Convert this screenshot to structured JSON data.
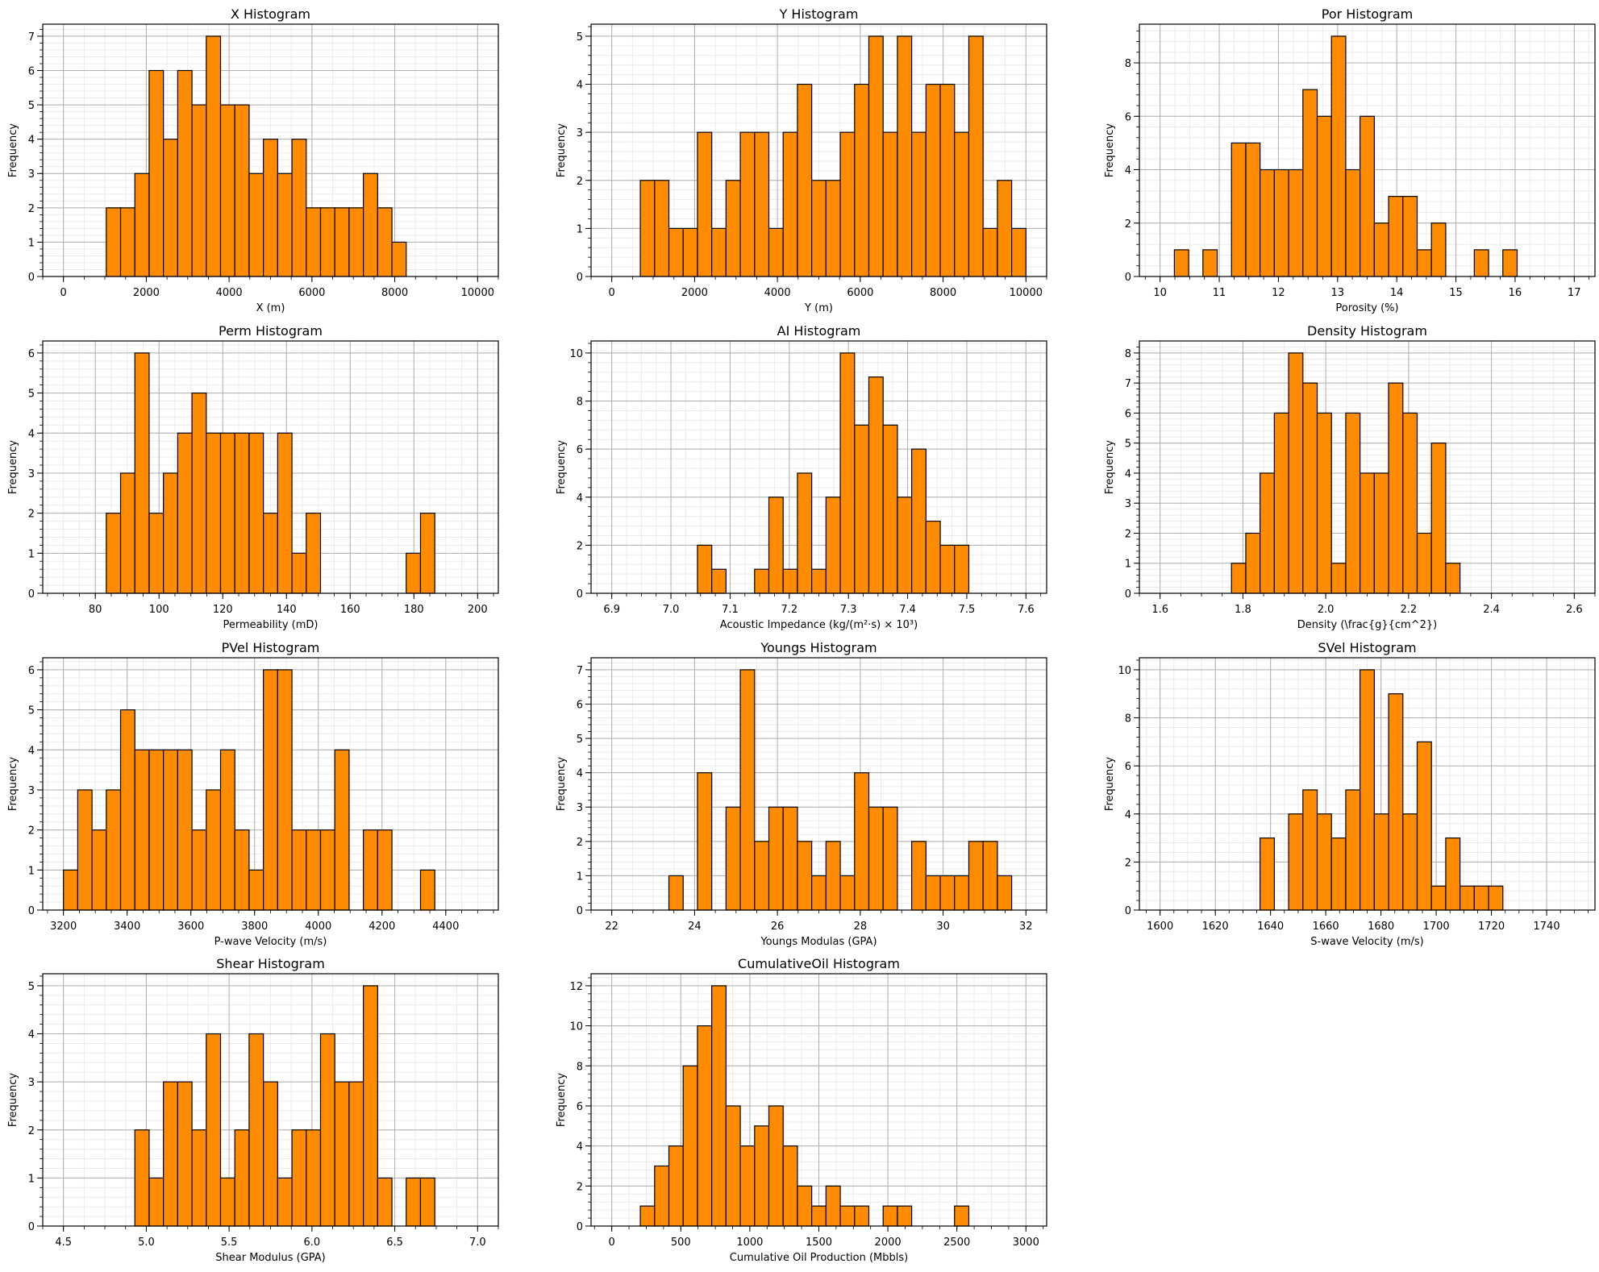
{
  "figure": {
    "bar_color": "#ff8c00",
    "edge_color": "#000000",
    "major_grid_color": "#b0b0b0",
    "minor_grid_color": "#ebebeb"
  },
  "chart_data": [
    {
      "type": "bar",
      "title": "X Histogram",
      "xlabel": "X (m)",
      "ylabel": "Frequency",
      "xlim": [
        -500,
        10500
      ],
      "ylim": [
        0,
        7.35
      ],
      "xticks": [
        0,
        2000,
        4000,
        6000,
        8000,
        10000
      ],
      "xtick_labels": [
        "0",
        "2000",
        "4000",
        "6000",
        "8000",
        "10000"
      ],
      "yticks": [
        0,
        1,
        2,
        3,
        4,
        5,
        6,
        7
      ],
      "ytick_labels": [
        "0",
        "1",
        "2",
        "3",
        "4",
        "5",
        "6",
        "7"
      ],
      "bin_range": [
        0,
        10000
      ],
      "bin_width": 344.83,
      "counts": [
        0,
        0,
        0,
        2,
        2,
        3,
        6,
        4,
        6,
        5,
        7,
        5,
        5,
        3,
        4,
        3,
        4,
        2,
        2,
        2,
        2,
        3,
        2,
        1,
        0,
        0,
        0,
        0,
        0
      ],
      "grid": true
    },
    {
      "type": "bar",
      "title": "Y Histogram",
      "xlabel": "Y (m)",
      "ylabel": "Frequency",
      "xlim": [
        -500,
        10500
      ],
      "ylim": [
        0,
        5.25
      ],
      "xticks": [
        0,
        2000,
        4000,
        6000,
        8000,
        10000
      ],
      "xtick_labels": [
        "0",
        "2000",
        "4000",
        "6000",
        "8000",
        "10000"
      ],
      "yticks": [
        0,
        1,
        2,
        3,
        4,
        5
      ],
      "ytick_labels": [
        "0",
        "1",
        "2",
        "3",
        "4",
        "5"
      ],
      "bin_range": [
        0,
        10000
      ],
      "bin_width": 344.83,
      "counts": [
        0,
        0,
        2,
        2,
        1,
        1,
        3,
        1,
        2,
        3,
        3,
        1,
        3,
        4,
        2,
        2,
        3,
        4,
        5,
        3,
        5,
        3,
        4,
        4,
        3,
        5,
        1,
        2,
        1
      ],
      "grid": true
    },
    {
      "type": "bar",
      "title": "Por Histogram",
      "xlabel": "Porosity (%)",
      "ylabel": "Frequency",
      "xlim": [
        9.65,
        17.35
      ],
      "ylim": [
        0,
        9.45
      ],
      "xticks": [
        10,
        11,
        12,
        13,
        14,
        15,
        16,
        17
      ],
      "xtick_labels": [
        "10",
        "11",
        "12",
        "13",
        "14",
        "15",
        "16",
        "17"
      ],
      "yticks": [
        0,
        2,
        4,
        6,
        8
      ],
      "ytick_labels": [
        "0",
        "2",
        "4",
        "6",
        "8"
      ],
      "bin_range": [
        10,
        17
      ],
      "bin_width": 0.2414,
      "counts": [
        0,
        1,
        0,
        1,
        0,
        5,
        5,
        4,
        4,
        4,
        7,
        6,
        9,
        4,
        6,
        2,
        3,
        3,
        1,
        2,
        0,
        0,
        1,
        0,
        1,
        0,
        0,
        0,
        0
      ],
      "grid": true
    },
    {
      "type": "bar",
      "title": "Perm Histogram",
      "xlabel": "Permeability (mD)",
      "ylabel": "Frequency",
      "xlim": [
        63.5,
        206.5
      ],
      "ylim": [
        0,
        6.3
      ],
      "xticks": [
        80,
        100,
        120,
        140,
        160,
        180,
        200
      ],
      "xtick_labels": [
        "80",
        "100",
        "120",
        "140",
        "160",
        "180",
        "200"
      ],
      "yticks": [
        0,
        1,
        2,
        3,
        4,
        5,
        6
      ],
      "ytick_labels": [
        "0",
        "1",
        "2",
        "3",
        "4",
        "5",
        "6"
      ],
      "bin_range": [
        70,
        200
      ],
      "bin_width": 4.483,
      "counts": [
        0,
        0,
        0,
        2,
        3,
        6,
        2,
        3,
        4,
        5,
        4,
        4,
        4,
        4,
        2,
        4,
        1,
        2,
        0,
        0,
        0,
        0,
        0,
        0,
        1,
        2,
        0,
        0,
        0
      ],
      "grid": true
    },
    {
      "type": "bar",
      "title": "AI Histogram",
      "xlabel": "Acoustic Impedance (kg/(m²·s) × 10³)",
      "ylabel": "Frequency",
      "xlim": [
        6.865,
        7.635
      ],
      "ylim": [
        0,
        10.5
      ],
      "xticks": [
        6.9,
        7.0,
        7.1,
        7.2,
        7.3,
        7.4,
        7.5,
        7.6
      ],
      "xtick_labels": [
        "6.9",
        "7.0",
        "7.1",
        "7.2",
        "7.3",
        "7.4",
        "7.5",
        "7.6"
      ],
      "yticks": [
        0,
        2,
        4,
        6,
        8,
        10
      ],
      "ytick_labels": [
        "0",
        "2",
        "4",
        "6",
        "8",
        "10"
      ],
      "bin_range": [
        6.9,
        7.6
      ],
      "bin_width": 0.02414,
      "counts": [
        0,
        0,
        0,
        0,
        0,
        0,
        2,
        1,
        0,
        0,
        1,
        4,
        1,
        5,
        1,
        4,
        10,
        7,
        9,
        7,
        4,
        6,
        3,
        2,
        2,
        0,
        0,
        0,
        0
      ],
      "grid": true
    },
    {
      "type": "bar",
      "title": "Density Histogram",
      "xlabel": "Density (\\frac{g}{cm^2})",
      "ylabel": "Frequency",
      "xlim": [
        1.55,
        2.65
      ],
      "ylim": [
        0,
        8.4
      ],
      "xticks": [
        1.6,
        1.8,
        2.0,
        2.2,
        2.4,
        2.6
      ],
      "xtick_labels": [
        "1.6",
        "1.8",
        "2.0",
        "2.2",
        "2.4",
        "2.6"
      ],
      "yticks": [
        0,
        1,
        2,
        3,
        4,
        5,
        6,
        7,
        8
      ],
      "ytick_labels": [
        "0",
        "1",
        "2",
        "3",
        "4",
        "5",
        "6",
        "7",
        "8"
      ],
      "bin_range": [
        1.6,
        2.6
      ],
      "bin_width": 0.03448,
      "counts": [
        0,
        0,
        0,
        0,
        0,
        1,
        2,
        4,
        6,
        8,
        7,
        6,
        1,
        6,
        4,
        4,
        7,
        6,
        2,
        5,
        1,
        0,
        0,
        0,
        0,
        0,
        0,
        0,
        0
      ],
      "grid": true
    },
    {
      "type": "bar",
      "title": "PVel Histogram",
      "xlabel": "P-wave Velocity (m/s)",
      "ylabel": "Frequency",
      "xlim": [
        3135,
        4565
      ],
      "ylim": [
        0,
        6.3
      ],
      "xticks": [
        3200,
        3400,
        3600,
        3800,
        4000,
        4200,
        4400
      ],
      "xtick_labels": [
        "3200",
        "3400",
        "3600",
        "3800",
        "4000",
        "4200",
        "4400"
      ],
      "yticks": [
        0,
        1,
        2,
        3,
        4,
        5,
        6
      ],
      "ytick_labels": [
        "0",
        "1",
        "2",
        "3",
        "4",
        "5",
        "6"
      ],
      "bin_range": [
        3200,
        4500
      ],
      "bin_width": 44.83,
      "counts": [
        1,
        3,
        2,
        3,
        5,
        4,
        4,
        4,
        4,
        2,
        3,
        4,
        2,
        1,
        6,
        6,
        2,
        2,
        2,
        4,
        0,
        2,
        2,
        0,
        0,
        1,
        0,
        0,
        0
      ],
      "grid": true
    },
    {
      "type": "bar",
      "title": "Youngs Histogram",
      "xlabel": "Youngs Modulas (GPA)",
      "ylabel": "Frequency",
      "xlim": [
        21.5,
        32.5
      ],
      "ylim": [
        0,
        7.35
      ],
      "xticks": [
        22,
        24,
        26,
        28,
        30,
        32
      ],
      "xtick_labels": [
        "22",
        "24",
        "26",
        "28",
        "30",
        "32"
      ],
      "yticks": [
        0,
        1,
        2,
        3,
        4,
        5,
        6,
        7
      ],
      "ytick_labels": [
        "0",
        "1",
        "2",
        "3",
        "4",
        "5",
        "6",
        "7"
      ],
      "bin_range": [
        22,
        32
      ],
      "bin_width": 0.3448,
      "counts": [
        0,
        0,
        0,
        0,
        1,
        0,
        4,
        0,
        3,
        7,
        2,
        3,
        3,
        2,
        1,
        2,
        1,
        4,
        3,
        3,
        0,
        2,
        1,
        1,
        1,
        2,
        2,
        1,
        0
      ],
      "grid": true
    },
    {
      "type": "bar",
      "title": "SVel Histogram",
      "xlabel": "S-wave Velocity (m/s)",
      "ylabel": "Frequency",
      "xlim": [
        1592.5,
        1757.5
      ],
      "ylim": [
        0,
        10.5
      ],
      "xticks": [
        1600,
        1620,
        1640,
        1660,
        1680,
        1700,
        1720,
        1740
      ],
      "xtick_labels": [
        "1600",
        "1620",
        "1640",
        "1660",
        "1680",
        "1700",
        "1720",
        "1740"
      ],
      "yticks": [
        0,
        2,
        4,
        6,
        8,
        10
      ],
      "ytick_labels": [
        "0",
        "2",
        "4",
        "6",
        "8",
        "10"
      ],
      "bin_range": [
        1600,
        1750
      ],
      "bin_width": 5.172,
      "counts": [
        0,
        0,
        0,
        0,
        0,
        0,
        0,
        3,
        0,
        4,
        5,
        4,
        3,
        5,
        10,
        4,
        9,
        4,
        7,
        1,
        3,
        1,
        1,
        1,
        0,
        0,
        0,
        0,
        0
      ],
      "grid": true
    },
    {
      "type": "bar",
      "title": "Shear Histogram",
      "xlabel": "Shear Modulus (GPA)",
      "ylabel": "Frequency",
      "xlim": [
        4.375,
        7.125
      ],
      "ylim": [
        0,
        5.25
      ],
      "xticks": [
        4.5,
        5.0,
        5.5,
        6.0,
        6.5,
        7.0
      ],
      "xtick_labels": [
        "4.5",
        "5.0",
        "5.5",
        "6.0",
        "6.5",
        "7.0"
      ],
      "yticks": [
        0,
        1,
        2,
        3,
        4,
        5
      ],
      "ytick_labels": [
        "0",
        "1",
        "2",
        "3",
        "4",
        "5"
      ],
      "bin_range": [
        4.5,
        7.0
      ],
      "bin_width": 0.08621,
      "counts": [
        0,
        0,
        0,
        0,
        0,
        2,
        1,
        3,
        3,
        2,
        4,
        1,
        2,
        4,
        3,
        1,
        2,
        2,
        4,
        3,
        3,
        5,
        1,
        0,
        1,
        1,
        0,
        0,
        0
      ],
      "grid": true
    },
    {
      "type": "bar",
      "title": "CumulativeOil Histogram",
      "xlabel": "Cumulative Oil Production (Mbbls)",
      "ylabel": "Frequency",
      "xlim": [
        -150,
        3150
      ],
      "ylim": [
        0,
        12.6
      ],
      "xticks": [
        0,
        500,
        1000,
        1500,
        2000,
        2500,
        3000
      ],
      "xtick_labels": [
        "0",
        "500",
        "1000",
        "1500",
        "2000",
        "2500",
        "3000"
      ],
      "yticks": [
        0,
        2,
        4,
        6,
        8,
        10,
        12
      ],
      "ytick_labels": [
        "0",
        "2",
        "4",
        "6",
        "8",
        "10",
        "12"
      ],
      "bin_range": [
        0,
        3000
      ],
      "bin_width": 103.45,
      "counts": [
        0,
        0,
        1,
        3,
        4,
        8,
        10,
        12,
        6,
        4,
        5,
        6,
        4,
        2,
        1,
        2,
        1,
        1,
        0,
        1,
        1,
        0,
        0,
        0,
        1,
        0,
        0,
        0,
        0
      ],
      "grid": true
    }
  ]
}
